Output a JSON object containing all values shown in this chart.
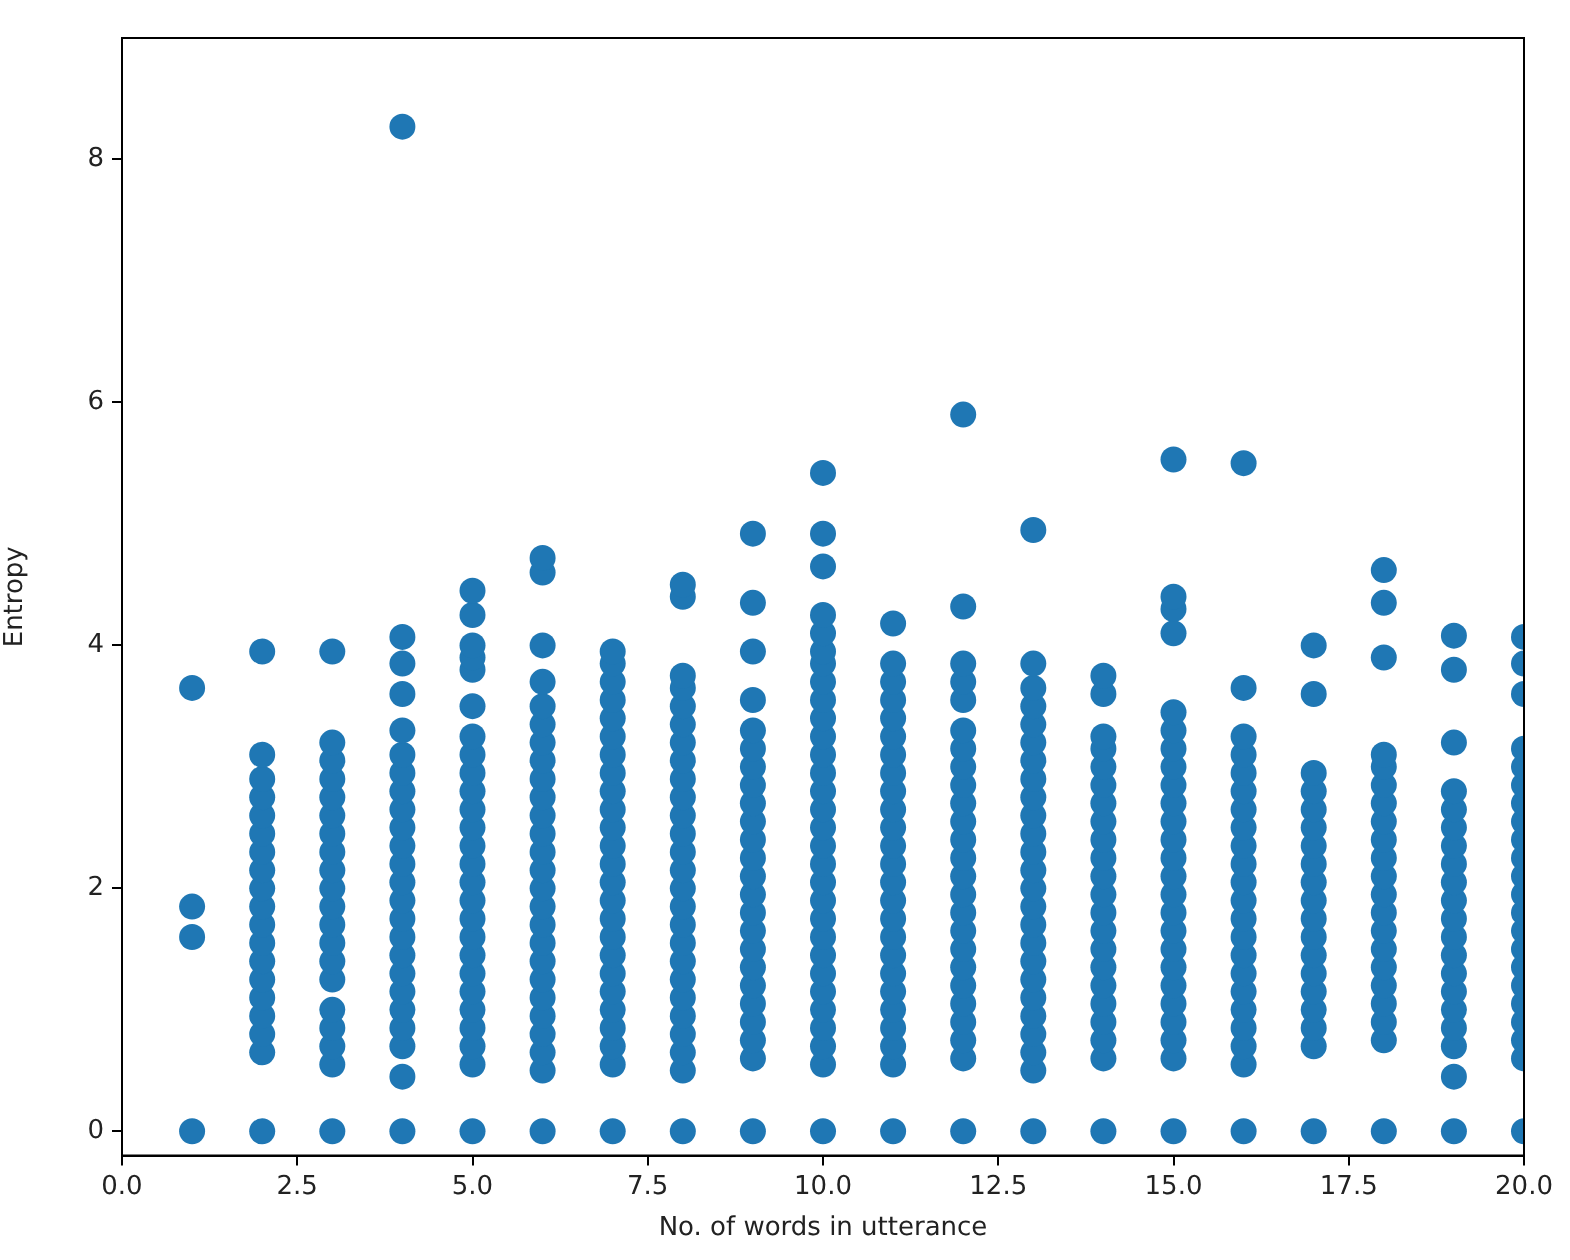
{
  "chart_data": {
    "type": "scatter",
    "xlabel": "No. of words in utterance",
    "ylabel": "Entropy",
    "xlim": [
      0,
      20
    ],
    "ylim": [
      -0.2,
      9
    ],
    "xticks": [
      {
        "value": 0,
        "label": "0.0"
      },
      {
        "value": 2.5,
        "label": "2.5"
      },
      {
        "value": 5,
        "label": "5.0"
      },
      {
        "value": 7.5,
        "label": "7.5"
      },
      {
        "value": 10,
        "label": "10.0"
      },
      {
        "value": 12.5,
        "label": "12.5"
      },
      {
        "value": 15,
        "label": "15.0"
      },
      {
        "value": 17.5,
        "label": "17.5"
      },
      {
        "value": 20,
        "label": "20.0"
      }
    ],
    "yticks": [
      0,
      2,
      4,
      6,
      8
    ],
    "grid": false,
    "legend": false,
    "marker": "circle",
    "series": [
      {
        "color": "#1f77b4",
        "x": [
          1,
          1,
          1,
          1
        ],
        "values": [
          0,
          1.6,
          1.85,
          3.65
        ]
      },
      {
        "color": "#1f77b4",
        "x": [
          2,
          2,
          2,
          2,
          2,
          2,
          2,
          2,
          2,
          2,
          2,
          2,
          2,
          2,
          2,
          2,
          2,
          2,
          2
        ],
        "values": [
          0,
          0.65,
          0.8,
          0.95,
          1.1,
          1.25,
          1.4,
          1.55,
          1.7,
          1.85,
          2.0,
          2.15,
          2.3,
          2.45,
          2.6,
          2.75,
          2.9,
          3.1,
          3.95
        ]
      },
      {
        "color": "#1f77b4",
        "x": [
          3,
          3,
          3,
          3,
          3,
          3,
          3,
          3,
          3,
          3,
          3,
          3,
          3,
          3,
          3,
          3,
          3,
          3,
          3,
          3
        ],
        "values": [
          0,
          0.55,
          0.7,
          0.85,
          1.0,
          1.25,
          1.4,
          1.55,
          1.7,
          1.85,
          2.0,
          2.15,
          2.3,
          2.45,
          2.6,
          2.75,
          2.9,
          3.05,
          3.2,
          3.95
        ]
      },
      {
        "color": "#1f77b4",
        "x": [
          4,
          4,
          4,
          4,
          4,
          4,
          4,
          4,
          4,
          4,
          4,
          4,
          4,
          4,
          4,
          4,
          4,
          4,
          4,
          4,
          4,
          4,
          4,
          4
        ],
        "values": [
          0,
          0.45,
          0.7,
          0.85,
          1.0,
          1.15,
          1.3,
          1.45,
          1.6,
          1.75,
          1.9,
          2.05,
          2.2,
          2.35,
          2.5,
          2.65,
          2.8,
          2.95,
          3.1,
          3.3,
          3.6,
          3.85,
          4.07,
          8.27
        ]
      },
      {
        "color": "#1f77b4",
        "x": [
          5,
          5,
          5,
          5,
          5,
          5,
          5,
          5,
          5,
          5,
          5,
          5,
          5,
          5,
          5,
          5,
          5,
          5,
          5,
          5,
          5,
          5,
          5,
          5,
          5,
          5
        ],
        "values": [
          0,
          0.55,
          0.7,
          0.85,
          1.0,
          1.15,
          1.3,
          1.45,
          1.6,
          1.75,
          1.9,
          2.05,
          2.2,
          2.35,
          2.5,
          2.65,
          2.8,
          2.95,
          3.1,
          3.25,
          3.5,
          3.8,
          3.9,
          4.0,
          4.25,
          4.45
        ]
      },
      {
        "color": "#1f77b4",
        "x": [
          6,
          6,
          6,
          6,
          6,
          6,
          6,
          6,
          6,
          6,
          6,
          6,
          6,
          6,
          6,
          6,
          6,
          6,
          6,
          6,
          6,
          6,
          6,
          6,
          6,
          6
        ],
        "values": [
          0,
          0.5,
          0.65,
          0.8,
          0.95,
          1.1,
          1.25,
          1.4,
          1.55,
          1.7,
          1.85,
          2.0,
          2.15,
          2.3,
          2.45,
          2.6,
          2.75,
          2.9,
          3.05,
          3.2,
          3.35,
          3.5,
          3.7,
          4.0,
          4.6,
          4.72
        ]
      },
      {
        "color": "#1f77b4",
        "x": [
          7,
          7,
          7,
          7,
          7,
          7,
          7,
          7,
          7,
          7,
          7,
          7,
          7,
          7,
          7,
          7,
          7,
          7,
          7,
          7,
          7,
          7,
          7,
          7,
          7
        ],
        "values": [
          0,
          0.55,
          0.7,
          0.85,
          1.0,
          1.15,
          1.3,
          1.45,
          1.6,
          1.75,
          1.9,
          2.05,
          2.2,
          2.35,
          2.5,
          2.65,
          2.8,
          2.95,
          3.1,
          3.25,
          3.4,
          3.55,
          3.7,
          3.85,
          3.95
        ]
      },
      {
        "color": "#1f77b4",
        "x": [
          8,
          8,
          8,
          8,
          8,
          8,
          8,
          8,
          8,
          8,
          8,
          8,
          8,
          8,
          8,
          8,
          8,
          8,
          8,
          8,
          8,
          8,
          8,
          8,
          8,
          8
        ],
        "values": [
          0,
          0.5,
          0.65,
          0.8,
          0.95,
          1.1,
          1.25,
          1.4,
          1.55,
          1.7,
          1.85,
          2.0,
          2.15,
          2.3,
          2.45,
          2.6,
          2.75,
          2.9,
          3.05,
          3.2,
          3.35,
          3.5,
          3.65,
          3.75,
          4.4,
          4.5
        ]
      },
      {
        "color": "#1f77b4",
        "x": [
          9,
          9,
          9,
          9,
          9,
          9,
          9,
          9,
          9,
          9,
          9,
          9,
          9,
          9,
          9,
          9,
          9,
          9,
          9,
          9,
          9,
          9,
          9,
          9
        ],
        "values": [
          0,
          0.6,
          0.75,
          0.9,
          1.05,
          1.2,
          1.35,
          1.5,
          1.65,
          1.8,
          1.95,
          2.1,
          2.25,
          2.4,
          2.55,
          2.7,
          2.85,
          3.0,
          3.15,
          3.3,
          3.55,
          3.95,
          4.35,
          4.92
        ]
      },
      {
        "color": "#1f77b4",
        "x": [
          10,
          10,
          10,
          10,
          10,
          10,
          10,
          10,
          10,
          10,
          10,
          10,
          10,
          10,
          10,
          10,
          10,
          10,
          10,
          10,
          10,
          10,
          10,
          10,
          10,
          10,
          10,
          10,
          10,
          10
        ],
        "values": [
          0,
          0.55,
          0.7,
          0.85,
          1.0,
          1.15,
          1.3,
          1.45,
          1.6,
          1.75,
          1.9,
          2.05,
          2.2,
          2.35,
          2.5,
          2.65,
          2.8,
          2.95,
          3.1,
          3.25,
          3.4,
          3.55,
          3.7,
          3.85,
          3.95,
          4.1,
          4.25,
          4.65,
          4.92,
          5.42
        ]
      },
      {
        "color": "#1f77b4",
        "x": [
          11,
          11,
          11,
          11,
          11,
          11,
          11,
          11,
          11,
          11,
          11,
          11,
          11,
          11,
          11,
          11,
          11,
          11,
          11,
          11,
          11,
          11,
          11,
          11,
          11
        ],
        "values": [
          0,
          0.55,
          0.7,
          0.85,
          1.0,
          1.15,
          1.3,
          1.45,
          1.6,
          1.75,
          1.9,
          2.05,
          2.2,
          2.35,
          2.5,
          2.65,
          2.8,
          2.95,
          3.1,
          3.25,
          3.4,
          3.55,
          3.7,
          3.85,
          4.18
        ]
      },
      {
        "color": "#1f77b4",
        "x": [
          12,
          12,
          12,
          12,
          12,
          12,
          12,
          12,
          12,
          12,
          12,
          12,
          12,
          12,
          12,
          12,
          12,
          12,
          12,
          12,
          12,
          12,
          12,
          12,
          12
        ],
        "values": [
          0,
          0.6,
          0.75,
          0.9,
          1.05,
          1.2,
          1.35,
          1.5,
          1.65,
          1.8,
          1.95,
          2.1,
          2.25,
          2.4,
          2.55,
          2.7,
          2.85,
          3.0,
          3.15,
          3.3,
          3.55,
          3.7,
          3.85,
          4.32,
          5.9
        ]
      },
      {
        "color": "#1f77b4",
        "x": [
          13,
          13,
          13,
          13,
          13,
          13,
          13,
          13,
          13,
          13,
          13,
          13,
          13,
          13,
          13,
          13,
          13,
          13,
          13,
          13,
          13,
          13,
          13,
          13,
          13
        ],
        "values": [
          0,
          0.5,
          0.65,
          0.8,
          0.95,
          1.1,
          1.25,
          1.4,
          1.55,
          1.7,
          1.85,
          2.0,
          2.15,
          2.3,
          2.45,
          2.6,
          2.75,
          2.9,
          3.05,
          3.2,
          3.35,
          3.5,
          3.65,
          3.85,
          4.95
        ]
      },
      {
        "color": "#1f77b4",
        "x": [
          14,
          14,
          14,
          14,
          14,
          14,
          14,
          14,
          14,
          14,
          14,
          14,
          14,
          14,
          14,
          14,
          14,
          14,
          14,
          14,
          14,
          14
        ],
        "values": [
          0,
          0.6,
          0.75,
          0.9,
          1.05,
          1.2,
          1.35,
          1.5,
          1.65,
          1.8,
          1.95,
          2.1,
          2.25,
          2.4,
          2.55,
          2.7,
          2.85,
          3.0,
          3.15,
          3.25,
          3.6,
          3.75
        ]
      },
      {
        "color": "#1f77b4",
        "x": [
          15,
          15,
          15,
          15,
          15,
          15,
          15,
          15,
          15,
          15,
          15,
          15,
          15,
          15,
          15,
          15,
          15,
          15,
          15,
          15,
          15,
          15,
          15,
          15,
          15
        ],
        "values": [
          0,
          0.6,
          0.75,
          0.9,
          1.05,
          1.2,
          1.35,
          1.5,
          1.65,
          1.8,
          1.95,
          2.1,
          2.25,
          2.4,
          2.55,
          2.7,
          2.85,
          3.0,
          3.15,
          3.3,
          3.45,
          4.1,
          4.3,
          4.4,
          5.53
        ]
      },
      {
        "color": "#1f77b4",
        "x": [
          16,
          16,
          16,
          16,
          16,
          16,
          16,
          16,
          16,
          16,
          16,
          16,
          16,
          16,
          16,
          16,
          16,
          16,
          16,
          16,
          16,
          16
        ],
        "values": [
          0,
          0.55,
          0.7,
          0.85,
          1.0,
          1.15,
          1.3,
          1.45,
          1.6,
          1.75,
          1.9,
          2.05,
          2.2,
          2.35,
          2.5,
          2.65,
          2.8,
          2.95,
          3.1,
          3.25,
          3.65,
          5.5
        ]
      },
      {
        "color": "#1f77b4",
        "x": [
          17,
          17,
          17,
          17,
          17,
          17,
          17,
          17,
          17,
          17,
          17,
          17,
          17,
          17,
          17,
          17,
          17,
          17,
          17
        ],
        "values": [
          0,
          0.7,
          0.85,
          1.0,
          1.15,
          1.3,
          1.45,
          1.6,
          1.75,
          1.9,
          2.05,
          2.2,
          2.35,
          2.5,
          2.65,
          2.8,
          2.95,
          3.6,
          4.0
        ]
      },
      {
        "color": "#1f77b4",
        "x": [
          18,
          18,
          18,
          18,
          18,
          18,
          18,
          18,
          18,
          18,
          18,
          18,
          18,
          18,
          18,
          18,
          18,
          18,
          18,
          18,
          18
        ],
        "values": [
          0,
          0.75,
          0.9,
          1.05,
          1.2,
          1.35,
          1.5,
          1.65,
          1.8,
          1.95,
          2.1,
          2.25,
          2.4,
          2.55,
          2.7,
          2.85,
          3.0,
          3.1,
          3.9,
          4.35,
          4.62
        ]
      },
      {
        "color": "#1f77b4",
        "x": [
          19,
          19,
          19,
          19,
          19,
          19,
          19,
          19,
          19,
          19,
          19,
          19,
          19,
          19,
          19,
          19,
          19,
          19,
          19,
          19
        ],
        "values": [
          0,
          0.45,
          0.7,
          0.85,
          1.0,
          1.15,
          1.3,
          1.45,
          1.6,
          1.75,
          1.9,
          2.05,
          2.2,
          2.35,
          2.5,
          2.65,
          2.8,
          3.2,
          3.8,
          4.08
        ]
      },
      {
        "color": "#1f77b4",
        "x": [
          20,
          20,
          20,
          20,
          20,
          20,
          20,
          20,
          20,
          20,
          20,
          20,
          20,
          20,
          20,
          20,
          20,
          20,
          20,
          20,
          20,
          20
        ],
        "values": [
          0,
          0.6,
          0.75,
          0.9,
          1.05,
          1.2,
          1.35,
          1.5,
          1.65,
          1.8,
          1.95,
          2.1,
          2.25,
          2.4,
          2.55,
          2.7,
          2.85,
          3.0,
          3.15,
          3.6,
          3.85,
          4.07
        ]
      }
    ]
  }
}
